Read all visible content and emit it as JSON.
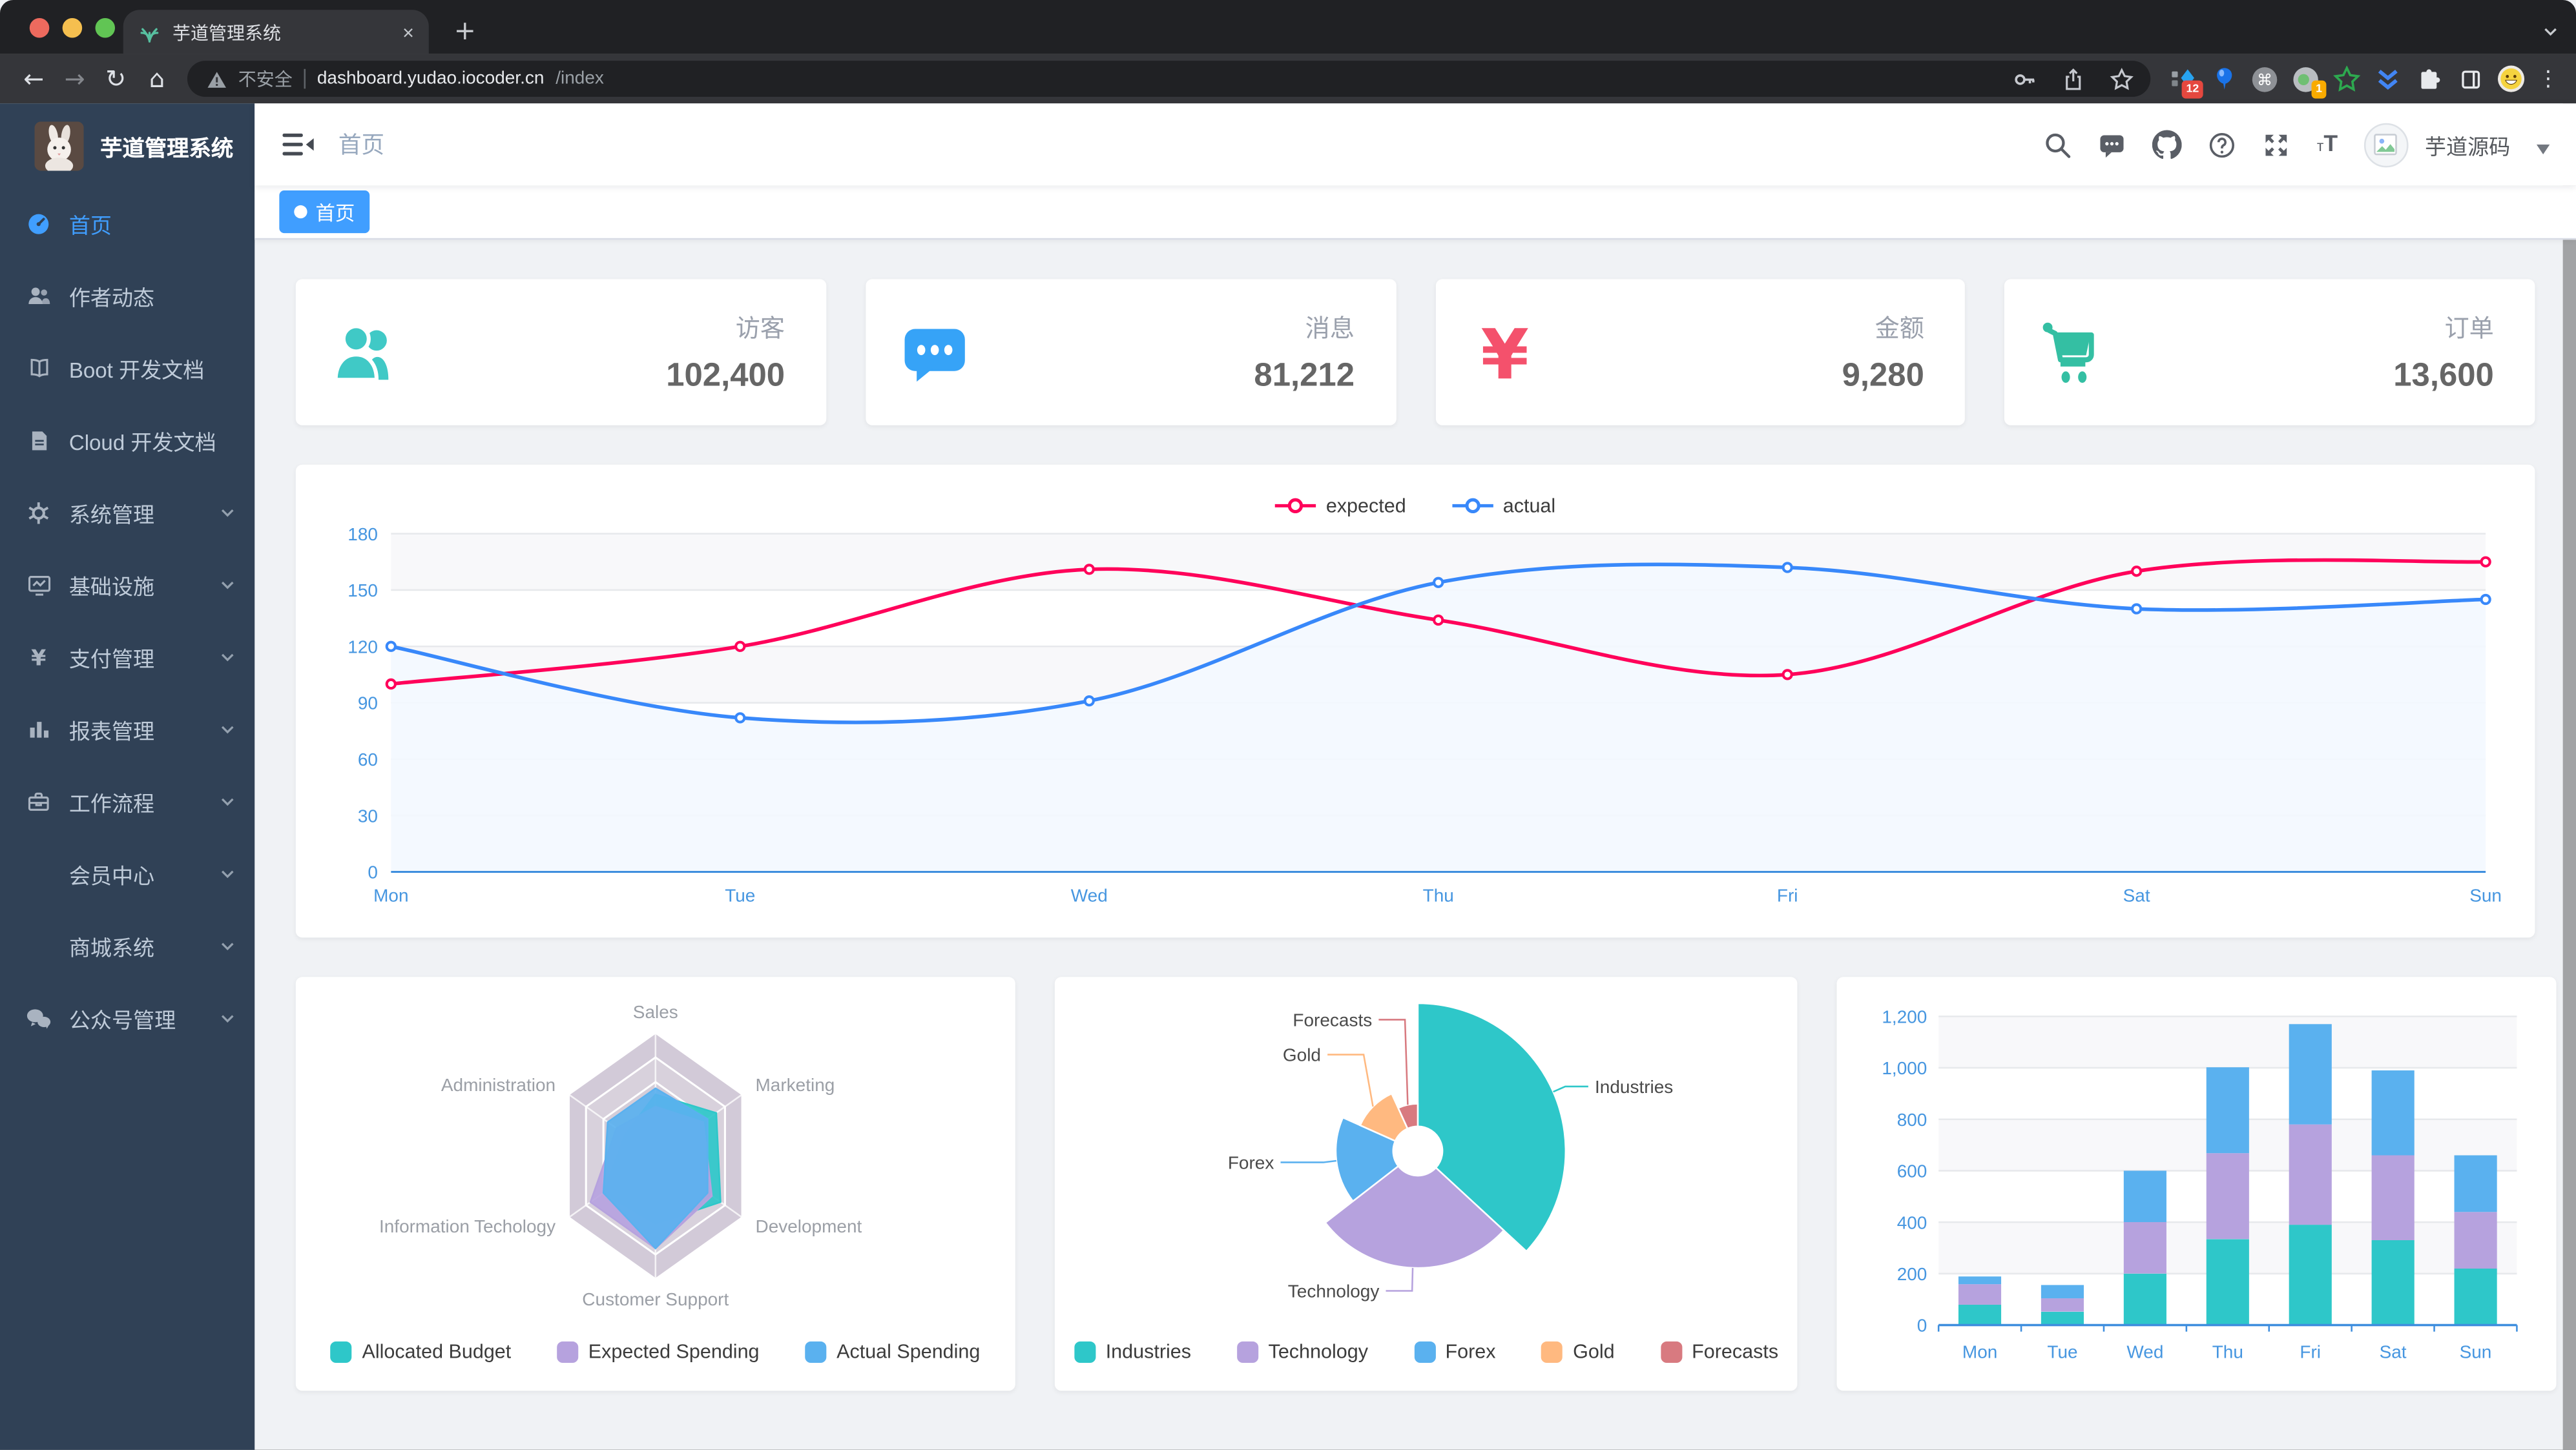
{
  "browser": {
    "tab_title": "芋道管理系统",
    "security_label": "不安全",
    "url_host": "dashboard.yudao.iocoder.cn",
    "url_path": "/index",
    "extension_badge_primary": "12",
    "extension_badge_secondary": "1"
  },
  "sidebar": {
    "logo_title": "芋道管理系统",
    "items": [
      {
        "name": "home",
        "label": "首页",
        "icon": "dashboard",
        "active": true,
        "expandable": false,
        "indent": false
      },
      {
        "name": "author-feed",
        "label": "作者动态",
        "icon": "people",
        "active": false,
        "expandable": false,
        "indent": false
      },
      {
        "name": "boot-docs",
        "label": "Boot 开发文档",
        "icon": "book",
        "active": false,
        "expandable": false,
        "indent": false
      },
      {
        "name": "cloud-docs",
        "label": "Cloud 开发文档",
        "icon": "document",
        "active": false,
        "expandable": false,
        "indent": false
      },
      {
        "name": "system-management",
        "label": "系统管理",
        "icon": "gear",
        "active": false,
        "expandable": true,
        "indent": false
      },
      {
        "name": "infrastructure",
        "label": "基础设施",
        "icon": "monitor",
        "active": false,
        "expandable": true,
        "indent": false
      },
      {
        "name": "payment-management",
        "label": "支付管理",
        "icon": "yen",
        "active": false,
        "expandable": true,
        "indent": false
      },
      {
        "name": "report-management",
        "label": "报表管理",
        "icon": "chart",
        "active": false,
        "expandable": true,
        "indent": false
      },
      {
        "name": "workflow",
        "label": "工作流程",
        "icon": "toolbox",
        "active": false,
        "expandable": true,
        "indent": false
      },
      {
        "name": "member-center",
        "label": "会员中心",
        "icon": null,
        "active": false,
        "expandable": true,
        "indent": true
      },
      {
        "name": "mall-system",
        "label": "商城系统",
        "icon": null,
        "active": false,
        "expandable": true,
        "indent": true
      },
      {
        "name": "official-account",
        "label": "公众号管理",
        "icon": "wechat",
        "active": false,
        "expandable": true,
        "indent": false
      }
    ]
  },
  "navbar": {
    "breadcrumb": "首页",
    "username": "芋道源码"
  },
  "tags": {
    "items": [
      {
        "label": "首页",
        "active": true
      }
    ]
  },
  "stats": [
    {
      "name": "visitors",
      "label": "访客",
      "value": "102,400",
      "icon": "people",
      "color": "#40c9c6"
    },
    {
      "name": "messages",
      "label": "消息",
      "value": "81,212",
      "icon": "message",
      "color": "#36a3f7"
    },
    {
      "name": "amount",
      "label": "金额",
      "value": "9,280",
      "icon": "money",
      "color": "#f4516c"
    },
    {
      "name": "orders",
      "label": "订单",
      "value": "13,600",
      "icon": "cart",
      "color": "#34bfa3"
    }
  ],
  "chart_data": [
    {
      "id": "weekly-line",
      "type": "line",
      "x": [
        "Mon",
        "Tue",
        "Wed",
        "Thu",
        "Fri",
        "Sat",
        "Sun"
      ],
      "ylim": [
        0,
        180
      ],
      "ytick": 30,
      "yticklabels": [
        "0",
        "30",
        "60",
        "90",
        "120",
        "150",
        "180"
      ],
      "series": [
        {
          "name": "expected",
          "color": "#FF005A",
          "values": [
            100,
            120,
            161,
            134,
            105,
            160,
            165
          ]
        },
        {
          "name": "actual",
          "color": "#3888fa",
          "area_color": "#f3f8ff",
          "values": [
            120,
            82,
            91,
            154,
            162,
            140,
            145
          ]
        }
      ],
      "legend_position": "top",
      "grid": "striped-bands"
    },
    {
      "id": "budget-radar",
      "type": "radar",
      "indicators": [
        {
          "name": "Sales",
          "max": 10000
        },
        {
          "name": "Administration",
          "max": 20000
        },
        {
          "name": "Information Techology",
          "max": 20000
        },
        {
          "name": "Customer Support",
          "max": 20000
        },
        {
          "name": "Development",
          "max": 20000
        },
        {
          "name": "Marketing",
          "max": 20000
        }
      ],
      "series": [
        {
          "name": "Allocated Budget",
          "color": "#2ec7c9",
          "values": [
            5000,
            7000,
            12000,
            11000,
            15000,
            14000
          ]
        },
        {
          "name": "Expected Spending",
          "color": "#b6a2de",
          "values": [
            4000,
            9000,
            15000,
            15000,
            13000,
            11000
          ]
        },
        {
          "name": "Actual Spending",
          "color": "#5ab1ef",
          "values": [
            5500,
            11000,
            12000,
            15000,
            12000,
            12000
          ]
        }
      ],
      "legend_position": "bottom"
    },
    {
      "id": "category-pie",
      "type": "pie",
      "rose": true,
      "items": [
        {
          "name": "Industries",
          "value": 320,
          "color": "#2ec7c9"
        },
        {
          "name": "Technology",
          "value": 240,
          "color": "#b6a2de"
        },
        {
          "name": "Forex",
          "value": 149,
          "color": "#5ab1ef"
        },
        {
          "name": "Gold",
          "value": 100,
          "color": "#ffb980"
        },
        {
          "name": "Forecasts",
          "value": 59,
          "color": "#d87a80"
        }
      ],
      "legend_position": "bottom"
    },
    {
      "id": "weekly-bar",
      "type": "bar",
      "stacked": true,
      "x": [
        "Mon",
        "Tue",
        "Wed",
        "Thu",
        "Fri",
        "Sat",
        "Sun"
      ],
      "ylim": [
        0,
        1200
      ],
      "ytick": 200,
      "yticklabels": [
        "0",
        "200",
        "400",
        "600",
        "800",
        "1,000",
        "1,200"
      ],
      "series": [
        {
          "color": "#2ec7c9",
          "values": [
            79,
            52,
            200,
            334,
            390,
            330,
            220
          ]
        },
        {
          "color": "#b6a2de",
          "values": [
            80,
            52,
            200,
            334,
            390,
            330,
            220
          ]
        },
        {
          "color": "#5ab1ef",
          "values": [
            30,
            52,
            200,
            334,
            390,
            330,
            220
          ]
        }
      ],
      "grid": "striped-bands"
    }
  ],
  "colors": {
    "accent": "#409eff",
    "sidebar_bg": "#304156",
    "chrome_tabstrip": "#202124",
    "chrome_toolbar": "#35363a",
    "content_bg": "#f0f2f5",
    "axis_label": "#4696e0",
    "traffic_lights": [
      "#ed6a5e",
      "#f5bf4f",
      "#61c554"
    ]
  }
}
